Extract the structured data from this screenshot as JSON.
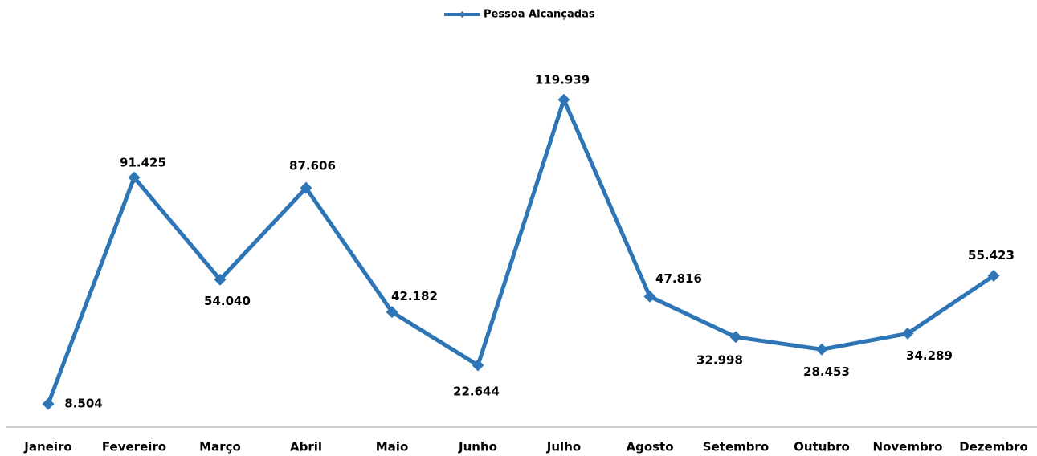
{
  "chart_data": {
    "type": "line",
    "categories": [
      "Janeiro",
      "Fevereiro",
      "Março",
      "Abril",
      "Maio",
      "Junho",
      "Julho",
      "Agosto",
      "Setembro",
      "Outubro",
      "Novembro",
      "Dezembro"
    ],
    "series": [
      {
        "name": "Pessoa Alcançadas",
        "color": "#2e75b6",
        "values": [
          8504,
          91425,
          54040,
          87606,
          42182,
          22644,
          119939,
          47816,
          32998,
          28453,
          34289,
          55423
        ],
        "value_labels": [
          "8.504",
          "91.425",
          "54.040",
          "87.606",
          "42.182",
          "22.644",
          "119.939",
          "47.816",
          "32.998",
          "28.453",
          "34.289",
          "55.423"
        ]
      }
    ],
    "ylim": [
      0,
      140000
    ],
    "legend": "top"
  }
}
